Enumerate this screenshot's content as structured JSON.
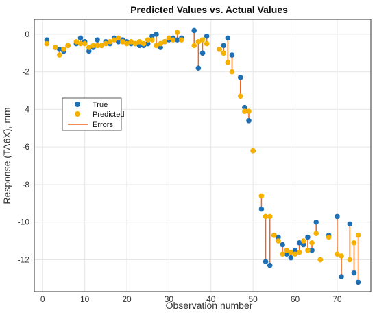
{
  "colors": {
    "true": "#1f6fb5",
    "predicted": "#f5b000",
    "errors": "#f0641e",
    "grid": "#e6e6e6",
    "axis": "#333333"
  },
  "chart_data": {
    "type": "scatter",
    "title": "Predicted Values vs. Actual Values",
    "xlabel": "Observation number",
    "ylabel": "Response (TA6X), mm",
    "xlim": [
      -2,
      78
    ],
    "ylim": [
      -13.7,
      0.8
    ],
    "xticks": [
      0,
      10,
      20,
      30,
      40,
      50,
      60,
      70
    ],
    "yticks": [
      0,
      -2,
      -4,
      -6,
      -8,
      -10,
      -12
    ],
    "grid": true,
    "legend": {
      "position": "middle-left",
      "entries": [
        "True",
        "Predicted",
        "Errors"
      ]
    },
    "x": [
      1,
      3,
      4,
      5,
      6,
      8,
      9,
      10,
      11,
      12,
      13,
      14,
      15,
      16,
      17,
      18,
      19,
      20,
      21,
      22,
      23,
      24,
      25,
      26,
      27,
      28,
      29,
      30,
      31,
      32,
      33,
      36,
      37,
      38,
      39,
      42,
      43,
      44,
      45,
      47,
      48,
      49,
      50,
      52,
      53,
      54,
      55,
      56,
      57,
      58,
      59,
      60,
      61,
      62,
      63,
      64,
      65,
      66,
      68,
      70,
      71,
      73,
      74,
      75
    ],
    "series": [
      {
        "name": "True",
        "values": [
          -0.3,
          -0.7,
          -0.8,
          -0.9,
          -0.6,
          -0.5,
          -0.2,
          -0.4,
          -0.9,
          -0.7,
          -0.3,
          -0.6,
          -0.4,
          -0.5,
          -0.2,
          -0.4,
          -0.3,
          -0.4,
          -0.5,
          -0.5,
          -0.6,
          -0.6,
          -0.5,
          -0.1,
          0.0,
          -0.7,
          -0.4,
          -0.3,
          -0.2,
          -0.3,
          -0.2,
          0.2,
          -1.8,
          -1.0,
          -0.1,
          -0.8,
          -0.6,
          -0.2,
          -1.1,
          -2.3,
          -3.9,
          -4.6,
          -6.2,
          -9.3,
          -12.1,
          -12.3,
          -10.7,
          -10.8,
          -11.2,
          -11.7,
          -11.9,
          -11.5,
          -11.1,
          -11.2,
          -10.8,
          -11.5,
          -10.0,
          -12.0,
          -10.7,
          -9.7,
          -12.9,
          -10.1,
          -12.7,
          -13.2
        ]
      },
      {
        "name": "Predicted",
        "values": [
          -0.5,
          -0.7,
          -1.1,
          -0.8,
          -0.6,
          -0.4,
          -0.5,
          -0.5,
          -0.7,
          -0.6,
          -0.6,
          -0.6,
          -0.5,
          -0.4,
          -0.3,
          -0.2,
          -0.4,
          -0.5,
          -0.4,
          -0.5,
          -0.4,
          -0.5,
          -0.3,
          -0.3,
          -0.6,
          -0.5,
          -0.4,
          -0.2,
          -0.3,
          0.1,
          -0.3,
          -0.6,
          -0.4,
          -0.3,
          -0.5,
          -0.8,
          -1.0,
          -1.5,
          -2.0,
          -3.3,
          -4.1,
          -4.1,
          -6.2,
          -8.6,
          -9.7,
          -9.7,
          -10.7,
          -11.0,
          -11.7,
          -11.5,
          -11.6,
          -11.7,
          -11.6,
          -11.0,
          -11.5,
          -11.1,
          -10.6,
          -12.0,
          -10.8,
          -11.7,
          -11.8,
          -12.0,
          -11.1,
          -10.7
        ]
      }
    ]
  }
}
